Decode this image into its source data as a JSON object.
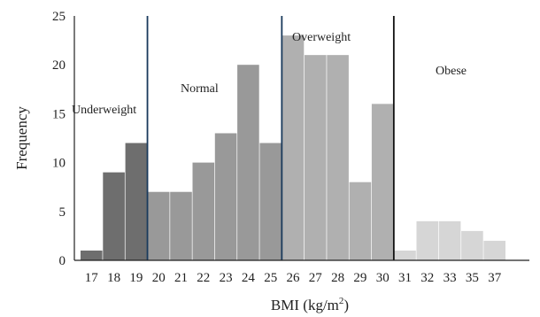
{
  "chart_data": {
    "type": "bar",
    "title": "",
    "xlabel_main": "BMI (kg/m",
    "xlabel_sup": "2",
    "xlabel_close": ")",
    "ylabel": "Frequency",
    "ylim": [
      0,
      25
    ],
    "yticks": [
      "0",
      "5",
      "10",
      "15",
      "20",
      "25"
    ],
    "grid": false,
    "categories": [
      "17",
      "18",
      "19",
      "20",
      "21",
      "22",
      "23",
      "24",
      "25",
      "26",
      "27",
      "28",
      "29",
      "30",
      "31",
      "32",
      "33",
      "35",
      "37"
    ],
    "values": [
      1,
      9,
      12,
      7,
      7,
      10,
      13,
      20,
      12,
      23,
      21,
      21,
      8,
      16,
      1,
      4,
      4,
      3,
      2
    ],
    "bar_colors": [
      "#6e6e6e",
      "#6e6e6e",
      "#6e6e6e",
      "#999999",
      "#999999",
      "#999999",
      "#999999",
      "#999999",
      "#999999",
      "#b0b0b0",
      "#b0b0b0",
      "#b0b0b0",
      "#b0b0b0",
      "#b0b0b0",
      "#d6d6d6",
      "#d6d6d6",
      "#d6d6d6",
      "#d6d6d6",
      "#d6d6d6"
    ],
    "regions": [
      {
        "label": "Underweight"
      },
      {
        "label": "Normal"
      },
      {
        "label": "Overweight"
      },
      {
        "label": "Obese"
      }
    ],
    "dividers_after_category_index": [
      2,
      8,
      13
    ]
  }
}
